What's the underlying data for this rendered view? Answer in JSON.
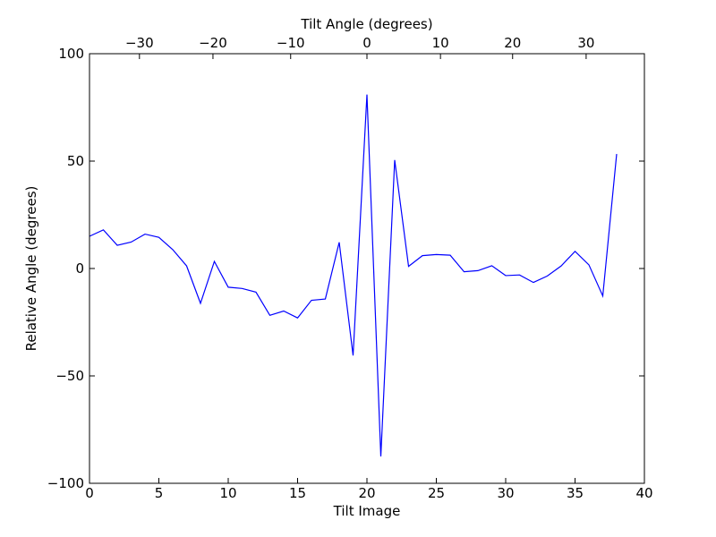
{
  "chart_data": {
    "type": "line",
    "xlabel": "Tilt Image",
    "ylabel": "Relative Angle (degrees)",
    "top_xlabel": "Tilt Angle (degrees)",
    "xlim": [
      0,
      40
    ],
    "ylim": [
      -100,
      100
    ],
    "x_ticks": [
      0,
      5,
      10,
      15,
      20,
      25,
      30,
      35,
      40
    ],
    "y_ticks": [
      -100,
      -50,
      0,
      50,
      100
    ],
    "y_tick_labels": [
      "−100",
      "−50",
      "0",
      "50",
      "100"
    ],
    "top_x_ticks": [
      {
        "label": "−30",
        "x": 3.6
      },
      {
        "label": "−20",
        "x": 8.9
      },
      {
        "label": "−10",
        "x": 14.5
      },
      {
        "label": "0",
        "x": 20.0
      },
      {
        "label": "10",
        "x": 25.3
      },
      {
        "label": "20",
        "x": 30.5
      },
      {
        "label": "30",
        "x": 35.8
      }
    ],
    "grid": false,
    "series": [
      {
        "color": "#0000ff",
        "x": [
          0,
          1,
          2,
          3,
          4,
          5,
          6,
          7,
          8,
          9,
          10,
          11,
          12,
          13,
          14,
          15,
          16,
          17,
          18,
          19,
          20,
          21,
          22,
          23,
          24,
          25,
          26,
          27,
          28,
          29,
          30,
          31,
          32,
          33,
          34,
          35,
          36,
          37,
          38
        ],
        "values": [
          15,
          18,
          10.8,
          12.3,
          16,
          14.5,
          8.8,
          1.2,
          -16.2,
          3.3,
          -8.7,
          -9.3,
          -11,
          -21.8,
          -19.8,
          -23,
          -14.8,
          -14.2,
          12.2,
          -40.5,
          81,
          -87.5,
          50.5,
          1,
          6,
          6.5,
          6.2,
          -1.5,
          -1,
          1.3,
          -3.3,
          -3,
          -6.5,
          -3.5,
          1.2,
          8,
          1.7,
          -12.8,
          53.3
        ]
      }
    ]
  }
}
